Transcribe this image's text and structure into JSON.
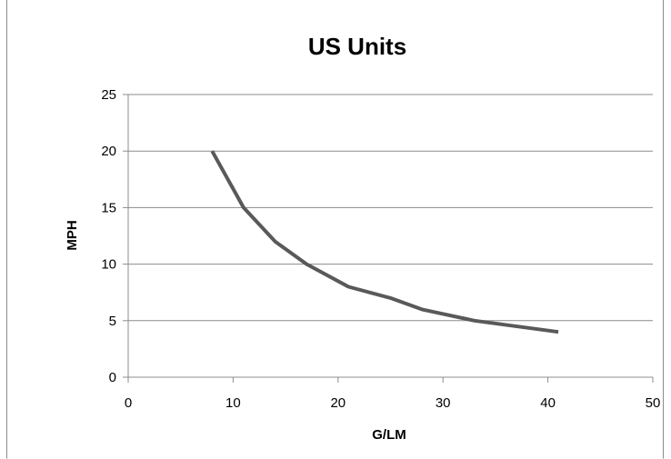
{
  "chart_data": {
    "type": "line",
    "title": "US Units",
    "xlabel": "G/LM",
    "ylabel": "MPH",
    "xlim": [
      0,
      50
    ],
    "ylim": [
      0,
      25
    ],
    "x_ticks": [
      "0",
      "10",
      "20",
      "30",
      "40",
      "50"
    ],
    "y_ticks": [
      "0",
      "5",
      "10",
      "15",
      "20",
      "25"
    ],
    "grid": "horizontal",
    "legend": "none",
    "series": [
      {
        "color": "#595959",
        "points": [
          {
            "x": 8,
            "y": 20
          },
          {
            "x": 11,
            "y": 15
          },
          {
            "x": 14,
            "y": 12
          },
          {
            "x": 17,
            "y": 10
          },
          {
            "x": 21,
            "y": 8
          },
          {
            "x": 25,
            "y": 7
          },
          {
            "x": 28,
            "y": 6
          },
          {
            "x": 33,
            "y": 5
          },
          {
            "x": 41,
            "y": 4
          }
        ]
      }
    ]
  }
}
